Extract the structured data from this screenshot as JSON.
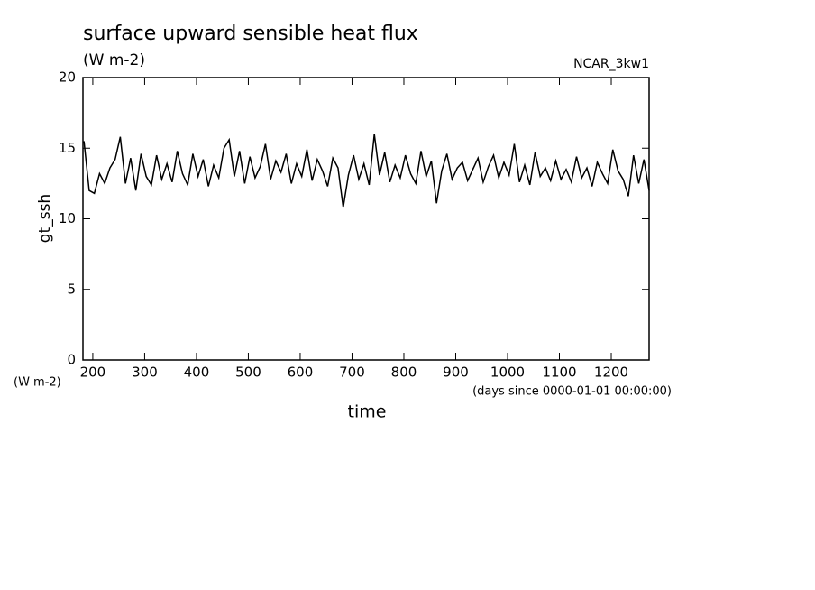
{
  "chart_data": {
    "type": "line",
    "title": "surface upward sensible heat flux",
    "subtitle": "(W m-2)",
    "annotation": "NCAR_3kw1",
    "y_label": "gt_ssh",
    "y_units": "(W m-2)",
    "x_label": "time",
    "x_units": "(days since 0000-01-01 00:00:00)",
    "xlim": [
      181,
      1273
    ],
    "ylim": [
      0,
      20
    ],
    "xticks": [
      200,
      300,
      400,
      500,
      600,
      700,
      800,
      900,
      1000,
      1100,
      1200
    ],
    "yticks": [
      0,
      5,
      10,
      15,
      20
    ],
    "x": [
      183,
      193,
      203,
      213,
      223,
      233,
      243,
      253,
      263,
      273,
      283,
      293,
      303,
      313,
      323,
      333,
      343,
      353,
      363,
      373,
      383,
      393,
      403,
      413,
      423,
      433,
      443,
      453,
      463,
      473,
      483,
      493,
      503,
      513,
      523,
      533,
      543,
      553,
      563,
      573,
      583,
      593,
      603,
      613,
      623,
      633,
      643,
      653,
      663,
      673,
      683,
      693,
      703,
      713,
      723,
      733,
      743,
      753,
      763,
      773,
      783,
      793,
      803,
      813,
      823,
      833,
      843,
      853,
      863,
      873,
      883,
      893,
      903,
      913,
      923,
      933,
      943,
      953,
      963,
      973,
      983,
      993,
      1003,
      1013,
      1023,
      1033,
      1043,
      1053,
      1063,
      1073,
      1083,
      1093,
      1103,
      1113,
      1123,
      1133,
      1143,
      1153,
      1163,
      1173,
      1183,
      1193,
      1203,
      1213,
      1223,
      1233,
      1243,
      1253,
      1263,
      1273
    ],
    "series": [
      {
        "color": "#000000",
        "values": [
          15.5,
          12.0,
          11.8,
          13.2,
          12.5,
          13.6,
          14.2,
          15.8,
          12.5,
          14.3,
          12.0,
          14.6,
          13.0,
          12.4,
          14.5,
          12.8,
          13.9,
          12.6,
          14.8,
          13.2,
          12.4,
          14.6,
          13.0,
          14.2,
          12.3,
          13.8,
          12.9,
          15.0,
          15.6,
          13.0,
          14.8,
          12.5,
          14.4,
          12.9,
          13.7,
          15.3,
          12.8,
          14.1,
          13.3,
          14.6,
          12.5,
          13.9,
          13.0,
          14.9,
          12.7,
          14.2,
          13.4,
          12.3,
          14.3,
          13.6,
          10.8,
          13.1,
          14.5,
          12.8,
          13.9,
          12.4,
          16.0,
          13.1,
          14.7,
          12.6,
          13.8,
          12.9,
          14.5,
          13.2,
          12.5,
          14.8,
          13.0,
          14.1,
          11.1,
          13.4,
          14.6,
          12.8,
          13.6,
          14.0,
          12.7,
          13.5,
          14.3,
          12.6,
          13.7,
          14.5,
          12.9,
          14.0,
          13.1,
          15.3,
          12.6,
          13.8,
          12.4,
          14.7,
          13.0,
          13.6,
          12.7,
          14.1,
          12.8,
          13.5,
          12.6,
          14.4,
          12.9,
          13.6,
          12.3,
          14.0,
          13.2,
          12.5,
          14.9,
          13.4,
          12.8,
          11.6,
          14.5,
          12.5,
          14.2,
          12.0
        ]
      }
    ]
  }
}
